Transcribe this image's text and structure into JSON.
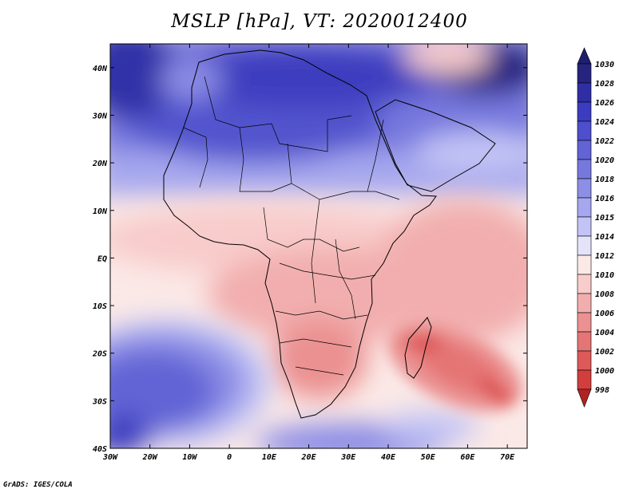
{
  "title": "MSLP [hPa], VT: 2020012400",
  "credit": "GrADS: IGES/COLA",
  "map": {
    "variable": "MSLP",
    "units": "hPa",
    "valid_time": "2020012400",
    "lon_range": [
      -30,
      75
    ],
    "lat_range": [
      -40,
      45
    ],
    "lon_ticks": [
      "30W",
      "20W",
      "10W",
      "0",
      "10E",
      "20E",
      "30E",
      "40E",
      "50E",
      "60E",
      "70E"
    ],
    "lat_ticks": [
      "40N",
      "30N",
      "20N",
      "10N",
      "EQ",
      "10S",
      "20S",
      "30S",
      "40S"
    ],
    "features": [
      {
        "name": "high-north-africa-mediterranean",
        "level_hpa": 1026
      },
      {
        "name": "high-south-atlantic",
        "level_hpa": 1024
      },
      {
        "name": "high-central-asia",
        "level_hpa": 1030
      },
      {
        "name": "low-madagascar-indian-ocean",
        "level_hpa": 1002
      },
      {
        "name": "low-southern-africa",
        "level_hpa": 1006
      }
    ]
  },
  "colorbar": {
    "levels": [
      "1030",
      "1028",
      "1026",
      "1024",
      "1022",
      "1020",
      "1018",
      "1016",
      "1015",
      "1014",
      "1012",
      "1010",
      "1008",
      "1006",
      "1004",
      "1002",
      "1000",
      "998"
    ],
    "colors": [
      "#27247f",
      "#302ea5",
      "#3c3cc0",
      "#4e4fcc",
      "#6263d5",
      "#7778de",
      "#8d8ee6",
      "#a6a7ee",
      "#c3c4f5",
      "#e3e3fa",
      "#fbe9e7",
      "#f8cccb",
      "#f2aeae",
      "#eb9191",
      "#e57575",
      "#de5a5a",
      "#d23e3e",
      "#bb2a2a"
    ],
    "top_arrow_color": "#1f1f6e",
    "bottom_arrow_color": "#b02323"
  }
}
